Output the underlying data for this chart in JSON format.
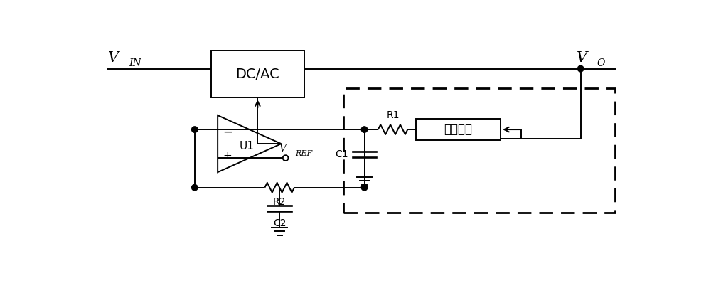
{
  "bg_color": "#ffffff",
  "line_color": "#000000",
  "fig_width": 10.0,
  "fig_height": 4.33,
  "dpi": 100,
  "vin_label": "V",
  "vin_sub": "IN",
  "vo_label": "V",
  "vo_sub": "O",
  "dcac_label": "DC/AC",
  "u1_label": "U1",
  "vref_label": "V",
  "vref_sub": "REF",
  "r1_label": "R1",
  "r2_label": "R2",
  "c1_label": "C1",
  "c2_label": "C2",
  "fullwave_label": "全波整流",
  "minus_label": "−",
  "plus_label": "+"
}
